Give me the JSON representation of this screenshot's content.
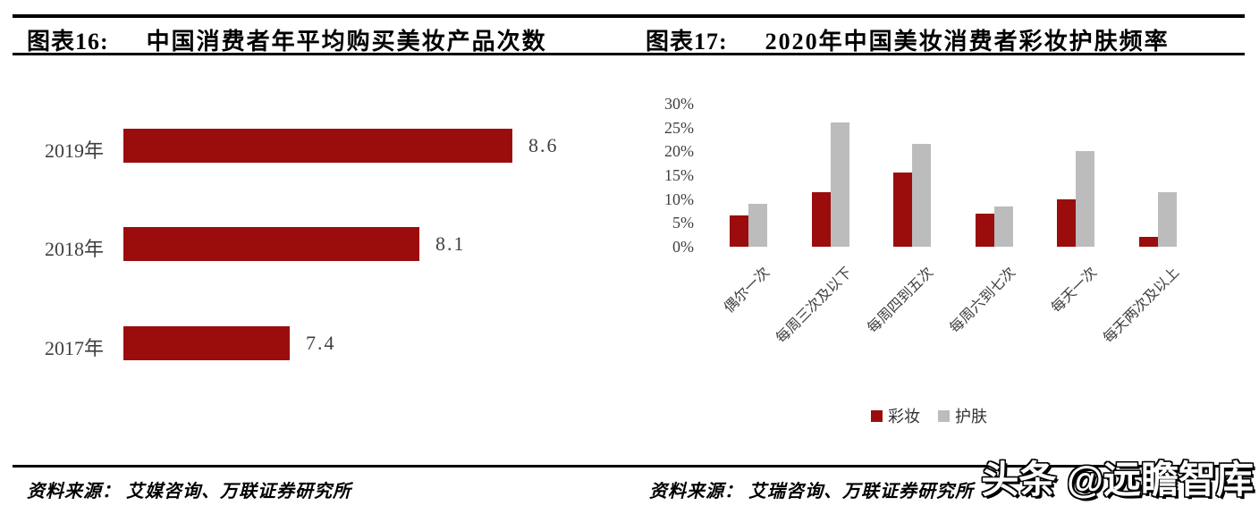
{
  "left_panel": {
    "title_label": "图表16:",
    "title": "中国消费者年平均购买美妆产品次数",
    "source_line": "资料来源： 艾媒咨询、万联证券研究所"
  },
  "right_panel": {
    "title_label": "图表17:",
    "title": "2020年中国美妆消费者彩妆护肤频率",
    "source_line": "资料来源： 艾瑞咨询、万联证券研究所"
  },
  "watermark": {
    "text": "头条 @远瞻智库"
  },
  "colors": {
    "bar_red": "#9B0D0D",
    "bar_gray": "#BCBCBC",
    "axis_text": "#3f3f3f",
    "rule": "#000000"
  },
  "chart_data": [
    {
      "id": "annual-purchase-times",
      "type": "bar",
      "orientation": "horizontal",
      "title": "中国消费者年平均购买美妆产品次数",
      "categories": [
        "2019年",
        "2018年",
        "2017年"
      ],
      "values": [
        8.6,
        8.1,
        7.4
      ],
      "value_labels": [
        "8.6",
        "8.1",
        "7.4"
      ],
      "xlabel": "",
      "ylabel": "",
      "xlim": [
        6.5,
        8.6
      ],
      "grid": false,
      "bar_color": "#9B0D0D"
    },
    {
      "id": "makeup-skincare-frequency-2020",
      "type": "bar",
      "orientation": "vertical-grouped",
      "title": "2020年中国美妆消费者彩妆护肤频率",
      "categories": [
        "偶尔一次",
        "每周三次及以下",
        "每周四到五次",
        "每周六到七次",
        "每天一次",
        "每天两次及以上"
      ],
      "series": [
        {
          "name": "彩妆",
          "color": "#9B0D0D",
          "values": [
            6.5,
            11.5,
            15.5,
            7,
            10,
            2
          ]
        },
        {
          "name": "护肤",
          "color": "#BCBCBC",
          "values": [
            9,
            26,
            21.5,
            8.5,
            20,
            11.5
          ]
        }
      ],
      "xlabel": "",
      "ylabel": "",
      "ylim": [
        0,
        30
      ],
      "ytick_step": 5,
      "ytick_labels": [
        "0%",
        "5%",
        "10%",
        "15%",
        "20%",
        "25%",
        "30%"
      ],
      "grid": false,
      "legend_position": "bottom"
    }
  ]
}
